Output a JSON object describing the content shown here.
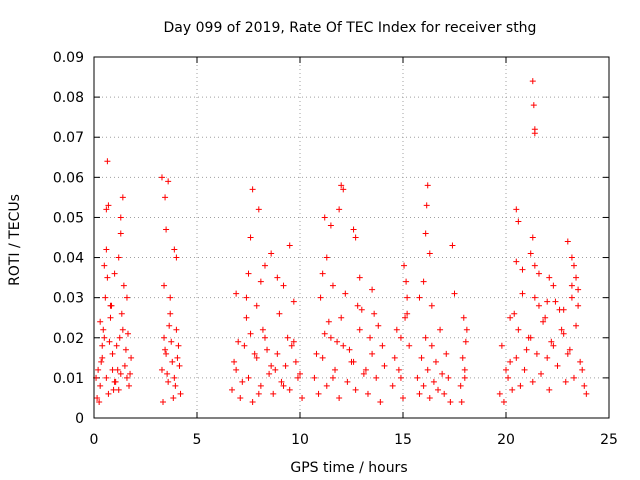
{
  "chart_data": {
    "type": "scatter",
    "title": "Day 099 of 2019, Rate Of TEC Index for receiver sthg",
    "xlabel": "GPS time / hours",
    "ylabel": "ROTI / TECUs",
    "xlim": [
      0,
      25
    ],
    "ylim": [
      0,
      0.09
    ],
    "grid": true,
    "marker": "+",
    "xticks": [
      0,
      5,
      10,
      15,
      20,
      25
    ],
    "xtick_labels": [
      "0",
      "5",
      "10",
      "15",
      "20",
      "25"
    ],
    "yticks": [
      0,
      0.01,
      0.02,
      0.03,
      0.04,
      0.05,
      0.06,
      0.07,
      0.08,
      0.09
    ],
    "ytick_labels": [
      "0",
      "0.01",
      "0.02",
      "0.03",
      "0.04",
      "0.05",
      "0.06",
      "0.07",
      "0.08",
      "0.09"
    ],
    "series": [
      {
        "name": "ROTI",
        "color": "#ff0000",
        "x": [
          0.1,
          0.2,
          0.3,
          0.4,
          0.5,
          0.6,
          0.7,
          0.8,
          0.9,
          1.0,
          1.1,
          1.2,
          1.3,
          1.4,
          1.5,
          1.6,
          1.7,
          1.8,
          0.15,
          0.35,
          0.55,
          0.75,
          0.95,
          1.15,
          1.35,
          1.55,
          1.75,
          0.25,
          0.45,
          0.65,
          0.85,
          1.05,
          1.25,
          1.45,
          1.65,
          0.3,
          0.5,
          0.6,
          0.65,
          0.9,
          1.2,
          1.3,
          1.4,
          0.7,
          1.6,
          0.4,
          0.6,
          0.8,
          1.0,
          1.3,
          3.3,
          3.4,
          3.5,
          3.6,
          3.7,
          3.8,
          3.9,
          4.0,
          4.1,
          4.2,
          3.35,
          3.55,
          3.75,
          3.95,
          4.15,
          3.45,
          3.65,
          3.85,
          4.05,
          3.4,
          3.5,
          3.6,
          3.45,
          3.9,
          4.0,
          3.3,
          3.7,
          6.7,
          6.9,
          7.1,
          7.3,
          7.5,
          7.7,
          7.9,
          8.1,
          8.3,
          8.5,
          8.7,
          8.9,
          9.1,
          9.3,
          9.5,
          9.7,
          9.9,
          10.1,
          6.8,
          7.2,
          7.6,
          8.0,
          8.4,
          8.8,
          9.2,
          9.6,
          10.0,
          7.0,
          7.4,
          7.8,
          8.2,
          8.6,
          9.0,
          9.4,
          9.8,
          7.4,
          7.5,
          7.6,
          7.7,
          8.0,
          8.3,
          8.6,
          8.9,
          9.2,
          9.5,
          9.7,
          6.9,
          7.9,
          8.1,
          10.7,
          10.9,
          11.1,
          11.3,
          11.5,
          11.7,
          11.9,
          12.1,
          12.3,
          12.5,
          12.7,
          12.9,
          13.1,
          13.3,
          13.5,
          13.7,
          13.9,
          14.1,
          10.8,
          11.2,
          11.6,
          12.0,
          12.4,
          12.8,
          13.2,
          13.6,
          14.0,
          11.0,
          11.4,
          11.8,
          12.2,
          12.6,
          13.0,
          13.4,
          13.8,
          11.3,
          11.5,
          11.9,
          12.0,
          12.1,
          12.6,
          12.7,
          11.1,
          11.6,
          11.2,
          12.9,
          13.5,
          14.5,
          14.6,
          14.8,
          14.9,
          15.0,
          15.1,
          15.2,
          15.3,
          14.7,
          15.05,
          15.15,
          15.2,
          14.9,
          15.7,
          15.8,
          15.9,
          16.0,
          16.1,
          16.2,
          16.3,
          16.4,
          16.5,
          16.6,
          16.7,
          16.8,
          16.9,
          17.0,
          17.1,
          17.2,
          17.3,
          15.8,
          16.0,
          16.1,
          16.15,
          16.2,
          16.3,
          17.5,
          17.4,
          16.4,
          17.8,
          17.9,
          18.0,
          18.1,
          17.85,
          18.05,
          17.95,
          18.0,
          19.7,
          19.9,
          20.1,
          20.3,
          20.5,
          20.7,
          20.9,
          21.1,
          21.3,
          21.5,
          21.7,
          21.9,
          22.1,
          22.3,
          22.5,
          22.7,
          22.9,
          23.1,
          23.3,
          23.5,
          23.7,
          23.9,
          19.8,
          20.2,
          20.6,
          21.0,
          21.4,
          21.8,
          22.2,
          22.6,
          23.0,
          23.4,
          23.8,
          20.0,
          20.4,
          20.8,
          21.2,
          21.6,
          22.0,
          22.4,
          22.8,
          23.2,
          23.6,
          21.3,
          21.35,
          21.4,
          21.4,
          21.3,
          20.5,
          20.6,
          20.5,
          21.4,
          21.2,
          21.6,
          22.0,
          22.1,
          22.3,
          23.0,
          23.2,
          23.3,
          23.4,
          23.5,
          23.2,
          22.8,
          20.8,
          20.2
        ],
        "y": [
          0.01,
          0.012,
          0.008,
          0.015,
          0.02,
          0.01,
          0.006,
          0.025,
          0.012,
          0.009,
          0.018,
          0.007,
          0.011,
          0.022,
          0.013,
          0.01,
          0.008,
          0.015,
          0.005,
          0.014,
          0.03,
          0.019,
          0.007,
          0.012,
          0.026,
          0.017,
          0.011,
          0.004,
          0.022,
          0.035,
          0.028,
          0.009,
          0.02,
          0.033,
          0.021,
          0.024,
          0.038,
          0.052,
          0.064,
          0.016,
          0.04,
          0.046,
          0.055,
          0.053,
          0.03,
          0.018,
          0.042,
          0.028,
          0.036,
          0.05,
          0.012,
          0.02,
          0.016,
          0.009,
          0.026,
          0.014,
          0.01,
          0.022,
          0.018,
          0.006,
          0.004,
          0.011,
          0.019,
          0.008,
          0.013,
          0.017,
          0.023,
          0.005,
          0.015,
          0.033,
          0.047,
          0.059,
          0.055,
          0.042,
          0.04,
          0.06,
          0.03,
          0.007,
          0.012,
          0.005,
          0.018,
          0.01,
          0.004,
          0.015,
          0.008,
          0.02,
          0.011,
          0.006,
          0.016,
          0.009,
          0.013,
          0.007,
          0.019,
          0.01,
          0.005,
          0.014,
          0.009,
          0.021,
          0.006,
          0.017,
          0.012,
          0.008,
          0.018,
          0.011,
          0.019,
          0.025,
          0.016,
          0.022,
          0.013,
          0.026,
          0.02,
          0.014,
          0.03,
          0.036,
          0.045,
          0.057,
          0.052,
          0.038,
          0.041,
          0.035,
          0.033,
          0.043,
          0.029,
          0.031,
          0.028,
          0.034,
          0.01,
          0.006,
          0.015,
          0.008,
          0.02,
          0.012,
          0.005,
          0.018,
          0.009,
          0.014,
          0.007,
          0.022,
          0.011,
          0.006,
          0.016,
          0.01,
          0.004,
          0.013,
          0.016,
          0.021,
          0.01,
          0.025,
          0.017,
          0.028,
          0.012,
          0.026,
          0.018,
          0.03,
          0.024,
          0.019,
          0.031,
          0.014,
          0.027,
          0.02,
          0.023,
          0.04,
          0.048,
          0.052,
          0.058,
          0.057,
          0.047,
          0.045,
          0.036,
          0.033,
          0.05,
          0.035,
          0.032,
          0.008,
          0.015,
          0.012,
          0.02,
          0.005,
          0.025,
          0.03,
          0.018,
          0.022,
          0.038,
          0.034,
          0.026,
          0.01,
          0.01,
          0.006,
          0.015,
          0.008,
          0.02,
          0.012,
          0.005,
          0.018,
          0.009,
          0.014,
          0.007,
          0.022,
          0.011,
          0.006,
          0.016,
          0.01,
          0.004,
          0.03,
          0.034,
          0.046,
          0.053,
          0.058,
          0.041,
          0.031,
          0.043,
          0.028,
          0.008,
          0.015,
          0.012,
          0.022,
          0.004,
          0.019,
          0.025,
          0.01,
          0.006,
          0.004,
          0.01,
          0.007,
          0.015,
          0.008,
          0.012,
          0.02,
          0.009,
          0.016,
          0.011,
          0.025,
          0.007,
          0.018,
          0.013,
          0.022,
          0.009,
          0.017,
          0.01,
          0.028,
          0.012,
          0.006,
          0.018,
          0.014,
          0.022,
          0.017,
          0.03,
          0.024,
          0.019,
          0.027,
          0.016,
          0.023,
          0.008,
          0.012,
          0.026,
          0.031,
          0.02,
          0.028,
          0.015,
          0.029,
          0.021,
          0.033,
          0.014,
          0.084,
          0.078,
          0.072,
          0.071,
          0.045,
          0.052,
          0.049,
          0.039,
          0.038,
          0.041,
          0.036,
          0.029,
          0.035,
          0.033,
          0.044,
          0.04,
          0.038,
          0.035,
          0.032,
          0.03,
          0.027,
          0.037,
          0.025
        ]
      }
    ]
  }
}
